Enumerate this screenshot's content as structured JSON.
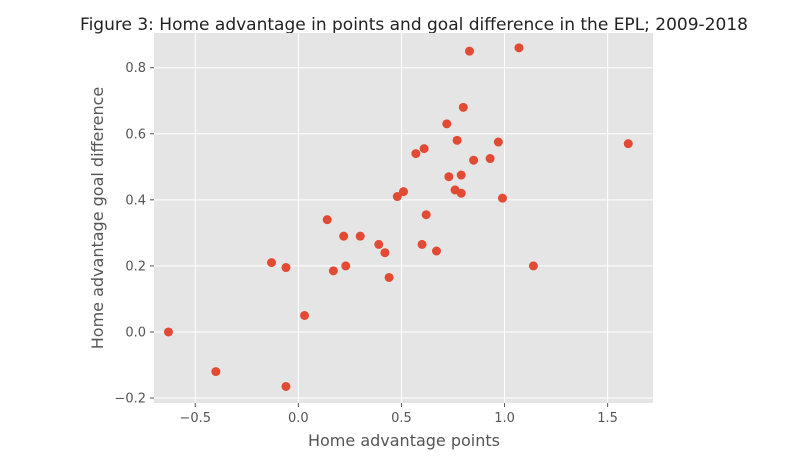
{
  "chart_data": {
    "type": "scatter",
    "title": "Figure 3: Home advantage in points and goal difference in the EPL; 2009-2018",
    "xlabel": "Home advantage points",
    "ylabel": "Home advantage goal difference",
    "xlim": [
      -0.7,
      1.72
    ],
    "ylim": [
      -0.215,
      0.905
    ],
    "xticks": [
      -0.5,
      0.0,
      0.5,
      1.0,
      1.5
    ],
    "xtick_labels": [
      "−0.5",
      "0.0",
      "0.5",
      "1.0",
      "1.5"
    ],
    "yticks": [
      -0.2,
      0.0,
      0.2,
      0.4,
      0.6,
      0.8
    ],
    "ytick_labels": [
      "−0.2",
      "0.0",
      "0.2",
      "0.4",
      "0.6",
      "0.8"
    ],
    "grid": true,
    "background": "#e5e5e5",
    "grid_color": "#ffffff",
    "marker_color": "#e24a33",
    "points": [
      {
        "x": -0.63,
        "y": 0.0
      },
      {
        "x": -0.4,
        "y": -0.12
      },
      {
        "x": -0.13,
        "y": 0.21
      },
      {
        "x": -0.06,
        "y": 0.195
      },
      {
        "x": -0.06,
        "y": -0.165
      },
      {
        "x": 0.03,
        "y": 0.05
      },
      {
        "x": 0.14,
        "y": 0.34
      },
      {
        "x": 0.17,
        "y": 0.185
      },
      {
        "x": 0.22,
        "y": 0.29
      },
      {
        "x": 0.23,
        "y": 0.2
      },
      {
        "x": 0.3,
        "y": 0.29
      },
      {
        "x": 0.39,
        "y": 0.265
      },
      {
        "x": 0.42,
        "y": 0.24
      },
      {
        "x": 0.44,
        "y": 0.165
      },
      {
        "x": 0.48,
        "y": 0.41
      },
      {
        "x": 0.51,
        "y": 0.425
      },
      {
        "x": 0.57,
        "y": 0.54
      },
      {
        "x": 0.6,
        "y": 0.265
      },
      {
        "x": 0.61,
        "y": 0.555
      },
      {
        "x": 0.62,
        "y": 0.355
      },
      {
        "x": 0.67,
        "y": 0.245
      },
      {
        "x": 0.72,
        "y": 0.63
      },
      {
        "x": 0.73,
        "y": 0.47
      },
      {
        "x": 0.76,
        "y": 0.43
      },
      {
        "x": 0.77,
        "y": 0.58
      },
      {
        "x": 0.79,
        "y": 0.475
      },
      {
        "x": 0.79,
        "y": 0.42
      },
      {
        "x": 0.8,
        "y": 0.68
      },
      {
        "x": 0.83,
        "y": 0.85
      },
      {
        "x": 0.85,
        "y": 0.52
      },
      {
        "x": 0.93,
        "y": 0.525
      },
      {
        "x": 0.97,
        "y": 0.575
      },
      {
        "x": 0.99,
        "y": 0.405
      },
      {
        "x": 1.07,
        "y": 0.86
      },
      {
        "x": 1.14,
        "y": 0.2
      },
      {
        "x": 1.6,
        "y": 0.57
      }
    ]
  }
}
